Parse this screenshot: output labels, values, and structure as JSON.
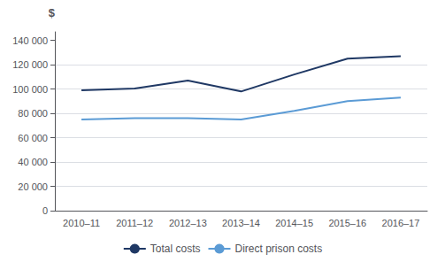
{
  "chart_data": {
    "type": "line",
    "categories": [
      "2010–11",
      "2011–12",
      "2012–13",
      "2013–14",
      "2014–15",
      "2015–16",
      "2016–17"
    ],
    "series": [
      {
        "name": "Total costs",
        "color": "#1F3864",
        "values": [
          99000,
          100500,
          107000,
          98000,
          112000,
          125000,
          127000
        ]
      },
      {
        "name": "Direct prison costs",
        "color": "#5B9BD5",
        "values": [
          75000,
          76000,
          76000,
          75000,
          82000,
          90000,
          93000
        ]
      }
    ],
    "ylabel": "$",
    "ylim": [
      0,
      147000
    ],
    "yticks": [
      0,
      {
        "value": 20000,
        "label": "20 000"
      },
      {
        "value": 40000,
        "label": "40 000"
      },
      {
        "value": 60000,
        "label": "60 000"
      },
      {
        "value": 80000,
        "label": "80 000"
      },
      {
        "value": 100000,
        "label": "100 000"
      },
      {
        "value": 120000,
        "label": "120 000"
      },
      {
        "value": 140000,
        "label": "140 000"
      }
    ],
    "grid": true,
    "legend": "bottom"
  }
}
